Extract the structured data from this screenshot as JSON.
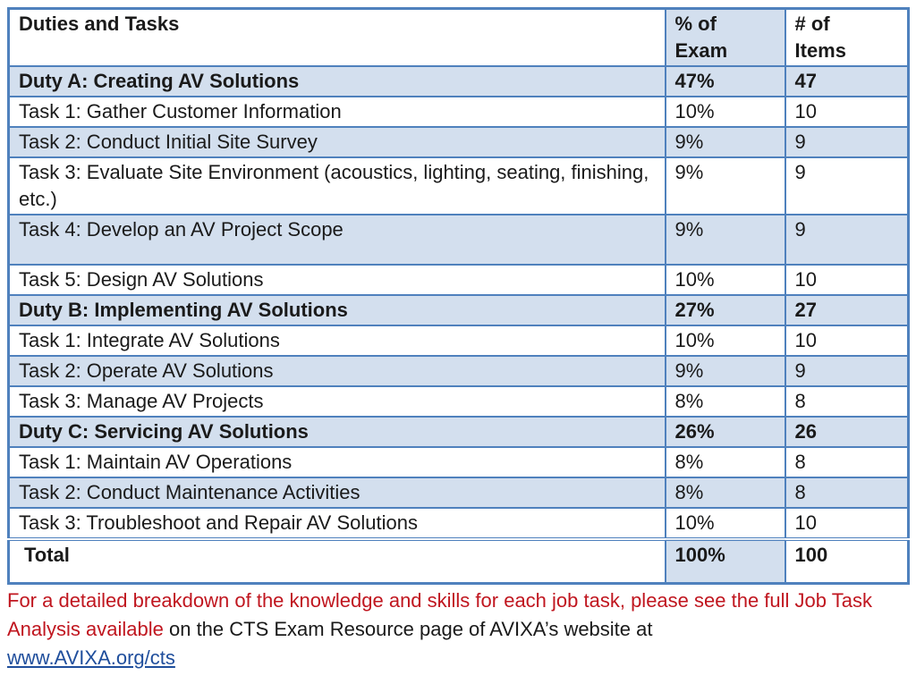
{
  "table": {
    "headers": [
      "Duties and Tasks",
      "% of Exam",
      "# of Items"
    ],
    "header_lines": {
      "col1": [
        "Duties and Tasks"
      ],
      "col2": [
        "% of",
        "Exam"
      ],
      "col3": [
        "# of",
        "Items"
      ]
    },
    "rows": [
      {
        "kind": "duty",
        "task": "Duty A: Creating AV Solutions",
        "percent": "47%",
        "items": "47"
      },
      {
        "kind": "plain",
        "task": "Task 1: Gather Customer Information",
        "percent": "10%",
        "items": "10"
      },
      {
        "kind": "alt",
        "task": "Task 2: Conduct Initial Site Survey",
        "percent": "9%",
        "items": "9"
      },
      {
        "kind": "plain",
        "task": "Task 3: Evaluate Site Environment (acoustics, lighting, seating, finishing, etc.)",
        "percent": "9%",
        "items": "9"
      },
      {
        "kind": "alt",
        "task": "Task 4:  Develop an AV Project Scope",
        "percent": "9%",
        "items": "9"
      },
      {
        "kind": "plain",
        "task": "Task 5: Design AV Solutions",
        "percent": "10%",
        "items": "10"
      },
      {
        "kind": "duty",
        "task": "Duty B: Implementing AV Solutions",
        "percent": "27%",
        "items": "27"
      },
      {
        "kind": "plain",
        "task": "Task 1: Integrate AV Solutions",
        "percent": "10%",
        "items": "10"
      },
      {
        "kind": "alt",
        "task": "Task 2: Operate AV Solutions",
        "percent": "9%",
        "items": "9"
      },
      {
        "kind": "plain",
        "task": "Task 3: Manage AV Projects",
        "percent": "8%",
        "items": "8"
      },
      {
        "kind": "duty",
        "task": "Duty C: Servicing AV Solutions",
        "percent": "26%",
        "items": "26"
      },
      {
        "kind": "plain",
        "task": "Task 1: Maintain AV Operations",
        "percent": "8%",
        "items": "8"
      },
      {
        "kind": "alt",
        "task": "Task 2: Conduct Maintenance Activities",
        "percent": "8%",
        "items": "8"
      },
      {
        "kind": "plain",
        "task": "Task 3: Troubleshoot and Repair AV Solutions",
        "percent": "10%",
        "items": "10"
      }
    ],
    "total": {
      "label": "Total",
      "percent": "100%",
      "items": "100"
    }
  },
  "footnote": {
    "red_text": "For a detailed breakdown of the knowledge and skills for each job task, please see the full Job Task Analysis available",
    "black_text": " on the CTS Exam Resource page of AVIXA’s website at",
    "link_text": "www.AVIXA.org/cts"
  },
  "colors": {
    "border": "#4f81bd",
    "shade": "#d3dfee",
    "red_text": "#c0161f",
    "link": "#1f4e9c"
  }
}
